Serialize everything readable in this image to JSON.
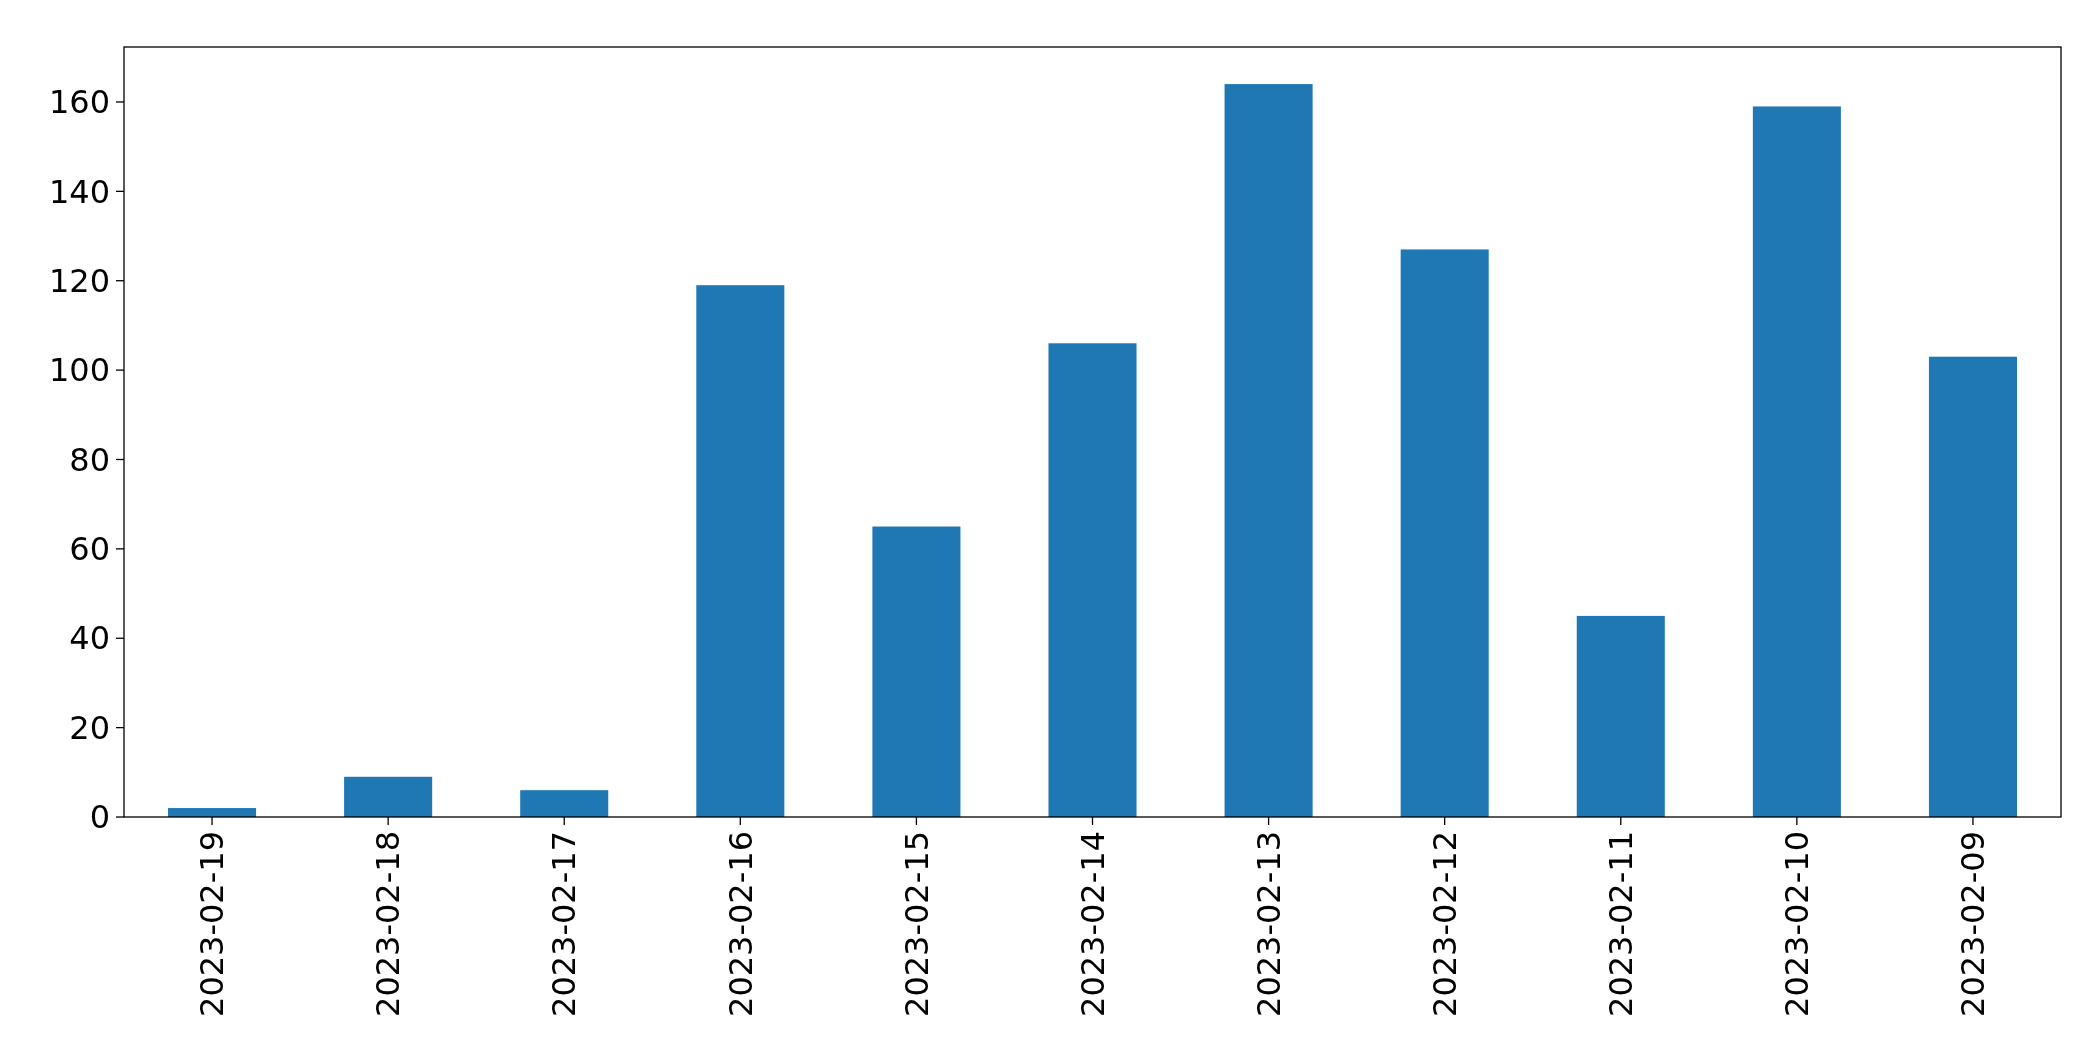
{
  "chart_data": {
    "type": "bar",
    "categories": [
      "2023-02-19",
      "2023-02-18",
      "2023-02-17",
      "2023-02-16",
      "2023-02-15",
      "2023-02-14",
      "2023-02-13",
      "2023-02-12",
      "2023-02-11",
      "2023-02-10",
      "2023-02-09"
    ],
    "values": [
      2,
      9,
      6,
      119,
      65,
      106,
      164,
      127,
      45,
      159,
      103
    ],
    "color": "#1f77b4",
    "ylim": [
      0,
      172.3
    ],
    "yticks": [
      0,
      20,
      40,
      60,
      80,
      100,
      120,
      140,
      160
    ],
    "grid": false
  }
}
